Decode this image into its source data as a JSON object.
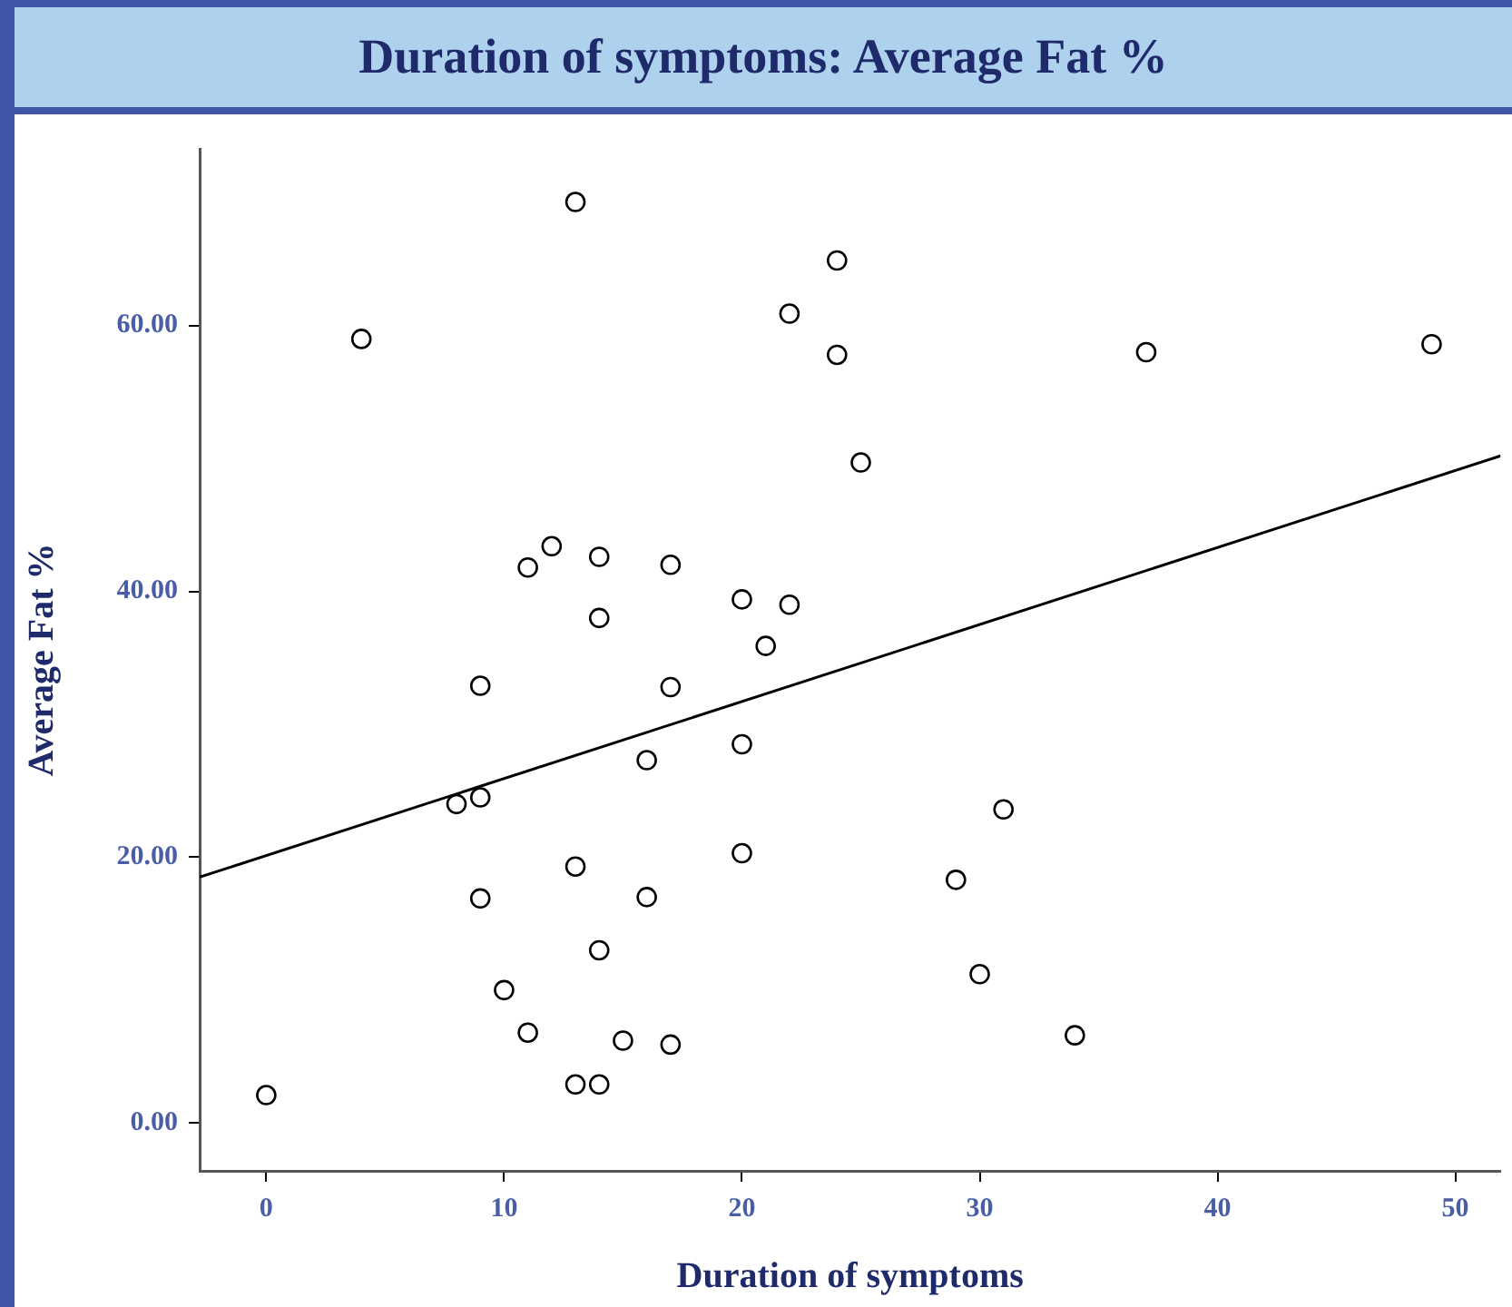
{
  "chart_data": {
    "type": "scatter",
    "title": "Duration of symptoms: Average Fat %",
    "xlabel": "Duration of symptoms",
    "ylabel": "Average Fat %",
    "xlim": [
      -2.8,
      51.9
    ],
    "ylim": [
      -3.6,
      73.3
    ],
    "xticks": [
      0,
      10,
      20,
      30,
      40,
      50
    ],
    "yticks": [
      {
        "value": 0,
        "label": "0.00"
      },
      {
        "value": 20,
        "label": "20.00"
      },
      {
        "value": 40,
        "label": "40.00"
      },
      {
        "value": 60,
        "label": "60.00"
      }
    ],
    "series": [
      {
        "color": "#000000",
        "marker": "circle",
        "x": [
          13,
          4,
          24,
          22,
          24,
          37,
          49,
          25,
          12,
          11,
          14,
          17,
          20,
          22,
          14,
          21,
          9,
          17,
          16,
          20,
          8,
          9,
          31,
          13,
          20,
          29,
          9,
          16,
          14,
          30,
          10,
          11,
          15,
          17,
          34,
          13,
          14,
          0
        ],
        "values": [
          69.3,
          59.0,
          64.9,
          60.9,
          57.8,
          58.0,
          58.6,
          49.7,
          43.4,
          41.8,
          42.6,
          42.0,
          39.4,
          39.0,
          38.0,
          35.9,
          32.9,
          32.8,
          27.3,
          28.5,
          24.0,
          24.5,
          23.6,
          19.3,
          20.3,
          18.3,
          16.9,
          17.0,
          13.0,
          11.2,
          10.0,
          6.8,
          6.2,
          5.9,
          6.6,
          2.9,
          2.9,
          2.1
        ]
      },
      {
        "type": "line",
        "color": "#000000",
        "marker": "none",
        "line_style": "solid",
        "x": [
          -2.8,
          51.9
        ],
        "values": [
          18.5,
          50.2
        ]
      }
    ]
  }
}
